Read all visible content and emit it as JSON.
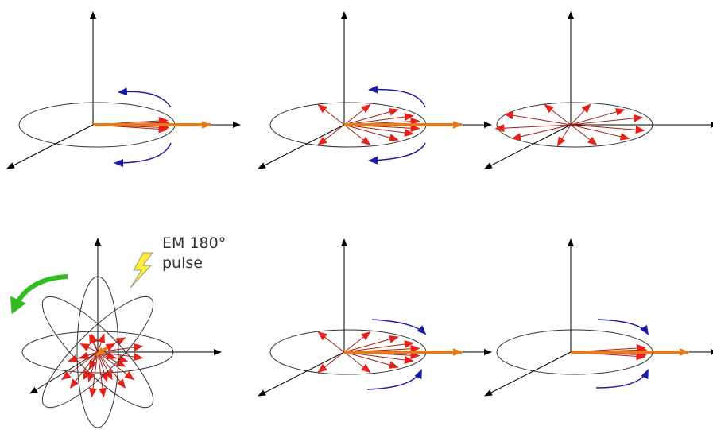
{
  "pulse_label": {
    "line1": "EM 180°",
    "line2": "pulse"
  }
}
